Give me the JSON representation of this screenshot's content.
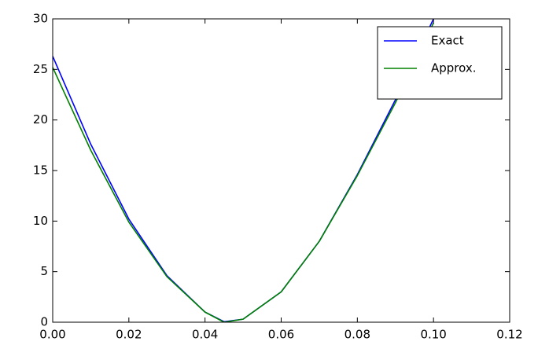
{
  "chart_data": {
    "type": "line",
    "x": [
      0,
      0.01,
      0.02,
      0.03,
      0.04,
      0.045,
      0.05,
      0.06,
      0.07,
      0.08,
      0.09,
      0.1
    ],
    "series": [
      {
        "name": "Exact",
        "color": "#0000ff",
        "values": [
          26.3,
          17.6,
          10.2,
          4.6,
          1.0,
          0.05,
          0.3,
          3.0,
          8.0,
          14.6,
          22.0,
          30
        ]
      },
      {
        "name": "Approx.",
        "color": "#008000",
        "values": [
          25.2,
          17.0,
          9.9,
          4.5,
          1.0,
          0.0,
          0.3,
          3.0,
          8.0,
          14.5,
          21.7,
          29.6
        ]
      }
    ],
    "xlim": [
      0,
      0.12
    ],
    "xticks": [
      {
        "value": 0,
        "label": "0.00"
      },
      {
        "value": 0.02,
        "label": "0.02"
      },
      {
        "value": 0.04,
        "label": "0.04"
      },
      {
        "value": 0.06,
        "label": "0.06"
      },
      {
        "value": 0.08,
        "label": "0.08"
      },
      {
        "value": 0.1,
        "label": "0.10"
      },
      {
        "value": 0.12,
        "label": "0.12"
      }
    ],
    "ylim": [
      0,
      30
    ],
    "yticks": [
      0,
      5,
      10,
      15,
      20,
      25,
      30
    ],
    "legend": "upper right"
  }
}
